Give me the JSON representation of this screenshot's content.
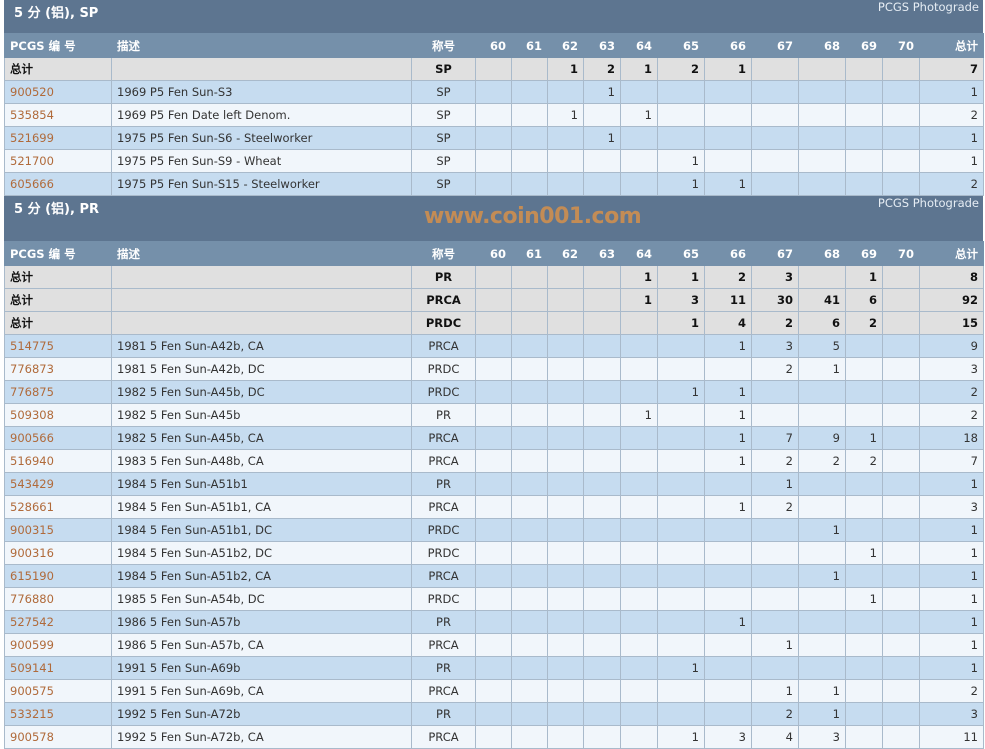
{
  "columns": {
    "pcgs": "PCGS 编 号",
    "desc": "描述",
    "designation": "称号",
    "grades": [
      "60",
      "61",
      "62",
      "63",
      "64",
      "65",
      "66",
      "67",
      "68",
      "69",
      "70"
    ],
    "total": "总计"
  },
  "sections": [
    {
      "title": "5 分 (铝), SP",
      "right": "PCGS Photograde",
      "totals": [
        {
          "label": "总计",
          "designation": "SP",
          "grades": [
            "",
            "",
            "1",
            "2",
            "1",
            "2",
            "1",
            "",
            "",
            "",
            ""
          ],
          "total": "7"
        }
      ],
      "rows": [
        {
          "pcgs": "900520",
          "desc": "1969 P5 Fen Sun-S3",
          "designation": "SP",
          "grades": [
            "",
            "",
            "",
            "1",
            "",
            "",
            "",
            "",
            "",
            "",
            ""
          ],
          "total": "1"
        },
        {
          "pcgs": "535854",
          "desc": "1969 P5 Fen Date left Denom.",
          "designation": "SP",
          "grades": [
            "",
            "",
            "1",
            "",
            "1",
            "",
            "",
            "",
            "",
            "",
            ""
          ],
          "total": "2"
        },
        {
          "pcgs": "521699",
          "desc": "1975 P5 Fen Sun-S6 - Steelworker",
          "designation": "SP",
          "grades": [
            "",
            "",
            "",
            "1",
            "",
            "",
            "",
            "",
            "",
            "",
            ""
          ],
          "total": "1"
        },
        {
          "pcgs": "521700",
          "desc": "1975 P5 Fen Sun-S9 - Wheat",
          "designation": "SP",
          "grades": [
            "",
            "",
            "",
            "",
            "",
            "1",
            "",
            "",
            "",
            "",
            ""
          ],
          "total": "1"
        },
        {
          "pcgs": "605666",
          "desc": "1975 P5 Fen Sun-S15 - Steelworker",
          "designation": "SP",
          "grades": [
            "",
            "",
            "",
            "",
            "",
            "1",
            "1",
            "",
            "",
            "",
            ""
          ],
          "total": "2"
        }
      ]
    },
    {
      "title": "5 分 (铝), PR",
      "right": "PCGS Photograde",
      "totals": [
        {
          "label": "总计",
          "designation": "PR",
          "grades": [
            "",
            "",
            "",
            "",
            "1",
            "1",
            "2",
            "3",
            "",
            "1",
            ""
          ],
          "total": "8"
        },
        {
          "label": "总计",
          "designation": "PRCA",
          "grades": [
            "",
            "",
            "",
            "",
            "1",
            "3",
            "11",
            "30",
            "41",
            "6",
            ""
          ],
          "total": "92"
        },
        {
          "label": "总计",
          "designation": "PRDC",
          "grades": [
            "",
            "",
            "",
            "",
            "",
            "1",
            "4",
            "2",
            "6",
            "2",
            ""
          ],
          "total": "15"
        }
      ],
      "rows": [
        {
          "pcgs": "514775",
          "desc": "1981 5 Fen Sun-A42b, CA",
          "designation": "PRCA",
          "grades": [
            "",
            "",
            "",
            "",
            "",
            "",
            "1",
            "3",
            "5",
            "",
            ""
          ],
          "total": "9"
        },
        {
          "pcgs": "776873",
          "desc": "1981 5 Fen Sun-A42b, DC",
          "designation": "PRDC",
          "grades": [
            "",
            "",
            "",
            "",
            "",
            "",
            "",
            "2",
            "1",
            "",
            ""
          ],
          "total": "3"
        },
        {
          "pcgs": "776875",
          "desc": "1982 5 Fen Sun-A45b, DC",
          "designation": "PRDC",
          "grades": [
            "",
            "",
            "",
            "",
            "",
            "1",
            "1",
            "",
            "",
            "",
            ""
          ],
          "total": "2"
        },
        {
          "pcgs": "509308",
          "desc": "1982 5 Fen Sun-A45b",
          "designation": "PR",
          "grades": [
            "",
            "",
            "",
            "",
            "1",
            "",
            "1",
            "",
            "",
            "",
            ""
          ],
          "total": "2"
        },
        {
          "pcgs": "900566",
          "desc": "1982 5 Fen Sun-A45b, CA",
          "designation": "PRCA",
          "grades": [
            "",
            "",
            "",
            "",
            "",
            "",
            "1",
            "7",
            "9",
            "1",
            ""
          ],
          "total": "18"
        },
        {
          "pcgs": "516940",
          "desc": "1983 5 Fen Sun-A48b, CA",
          "designation": "PRCA",
          "grades": [
            "",
            "",
            "",
            "",
            "",
            "",
            "1",
            "2",
            "2",
            "2",
            ""
          ],
          "total": "7"
        },
        {
          "pcgs": "543429",
          "desc": "1984 5 Fen Sun-A51b1",
          "designation": "PR",
          "grades": [
            "",
            "",
            "",
            "",
            "",
            "",
            "",
            "1",
            "",
            "",
            ""
          ],
          "total": "1"
        },
        {
          "pcgs": "528661",
          "desc": "1984 5 Fen Sun-A51b1, CA",
          "designation": "PRCA",
          "grades": [
            "",
            "",
            "",
            "",
            "",
            "",
            "1",
            "2",
            "",
            "",
            ""
          ],
          "total": "3"
        },
        {
          "pcgs": "900315",
          "desc": "1984 5 Fen Sun-A51b1, DC",
          "designation": "PRDC",
          "grades": [
            "",
            "",
            "",
            "",
            "",
            "",
            "",
            "",
            "1",
            "",
            ""
          ],
          "total": "1"
        },
        {
          "pcgs": "900316",
          "desc": "1984 5 Fen Sun-A51b2, DC",
          "designation": "PRDC",
          "grades": [
            "",
            "",
            "",
            "",
            "",
            "",
            "",
            "",
            "",
            "1",
            ""
          ],
          "total": "1"
        },
        {
          "pcgs": "615190",
          "desc": "1984 5 Fen Sun-A51b2, CA",
          "designation": "PRCA",
          "grades": [
            "",
            "",
            "",
            "",
            "",
            "",
            "",
            "",
            "1",
            "",
            ""
          ],
          "total": "1"
        },
        {
          "pcgs": "776880",
          "desc": "1985 5 Fen Sun-A54b, DC",
          "designation": "PRDC",
          "grades": [
            "",
            "",
            "",
            "",
            "",
            "",
            "",
            "",
            "",
            "1",
            ""
          ],
          "total": "1"
        },
        {
          "pcgs": "527542",
          "desc": "1986 5 Fen Sun-A57b",
          "designation": "PR",
          "grades": [
            "",
            "",
            "",
            "",
            "",
            "",
            "1",
            "",
            "",
            "",
            ""
          ],
          "total": "1"
        },
        {
          "pcgs": "900599",
          "desc": "1986 5 Fen Sun-A57b, CA",
          "designation": "PRCA",
          "grades": [
            "",
            "",
            "",
            "",
            "",
            "",
            "",
            "1",
            "",
            "",
            ""
          ],
          "total": "1"
        },
        {
          "pcgs": "509141",
          "desc": "1991 5 Fen Sun-A69b",
          "designation": "PR",
          "grades": [
            "",
            "",
            "",
            "",
            "",
            "1",
            "",
            "",
            "",
            "",
            ""
          ],
          "total": "1"
        },
        {
          "pcgs": "900575",
          "desc": "1991 5 Fen Sun-A69b, CA",
          "designation": "PRCA",
          "grades": [
            "",
            "",
            "",
            "",
            "",
            "",
            "",
            "1",
            "1",
            "",
            ""
          ],
          "total": "2"
        },
        {
          "pcgs": "533215",
          "desc": "1992 5 Fen Sun-A72b",
          "designation": "PR",
          "grades": [
            "",
            "",
            "",
            "",
            "",
            "",
            "",
            "2",
            "1",
            "",
            ""
          ],
          "total": "3"
        },
        {
          "pcgs": "900578",
          "desc": "1992 5 Fen Sun-A72b, CA",
          "designation": "PRCA",
          "grades": [
            "",
            "",
            "",
            "",
            "",
            "1",
            "3",
            "4",
            "3",
            "",
            ""
          ],
          "total": "11"
        }
      ]
    }
  ],
  "colors": {
    "section_header": "#5d7590",
    "column_header": "#7590aa",
    "row_odd": "#c6dcf0",
    "row_even": "#f1f6fb",
    "totals": "#e0e0e0",
    "link": "#b06a3a"
  },
  "watermark": "www.coin001.com"
}
